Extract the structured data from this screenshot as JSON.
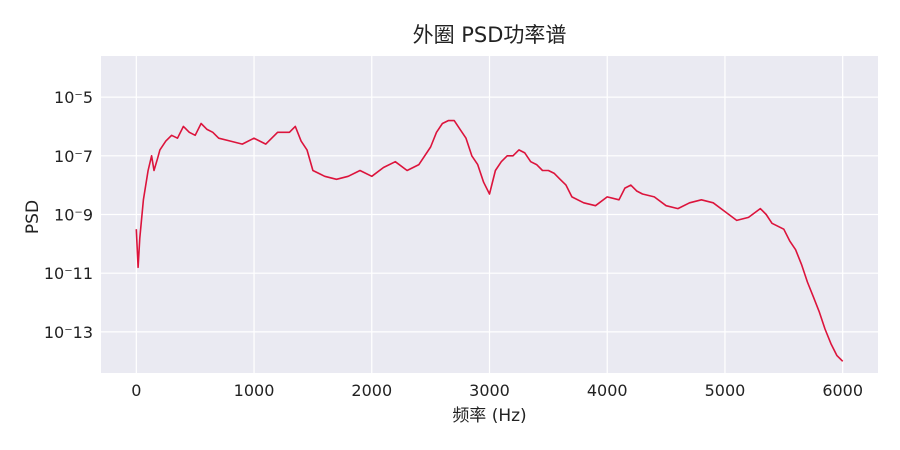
{
  "chart_data": {
    "type": "line",
    "title": "外圈 PSD功率谱",
    "xlabel": "频率 (Hz)",
    "ylabel": "PSD",
    "xlim": [
      -300,
      6300
    ],
    "x_ticks": [
      0,
      1000,
      2000,
      3000,
      4000,
      5000,
      6000
    ],
    "x_tick_labels": [
      "0",
      "1000",
      "2000",
      "3000",
      "4000",
      "5000",
      "6000"
    ],
    "yscale": "log",
    "y_ticks_exp": [
      -5,
      -7,
      -9,
      -11,
      -13
    ],
    "y_tick_labels": [
      "10⁻5",
      "10⁻7",
      "10⁻9",
      "10⁻11",
      "10⁻13"
    ],
    "ylim_exp": [
      -14.4,
      -3.6
    ],
    "grid": true,
    "legend": "none",
    "series": [
      {
        "color": "#DC143C",
        "x": [
          0,
          15,
          30,
          60,
          100,
          130,
          150,
          180,
          200,
          250,
          300,
          350,
          400,
          450,
          500,
          550,
          600,
          650,
          700,
          800,
          900,
          1000,
          1100,
          1200,
          1300,
          1350,
          1400,
          1450,
          1500,
          1550,
          1600,
          1700,
          1800,
          1900,
          2000,
          2100,
          2200,
          2300,
          2400,
          2500,
          2550,
          2600,
          2650,
          2700,
          2750,
          2800,
          2850,
          2900,
          2950,
          3000,
          3050,
          3100,
          3150,
          3200,
          3250,
          3300,
          3350,
          3400,
          3450,
          3500,
          3550,
          3600,
          3650,
          3700,
          3800,
          3900,
          4000,
          4100,
          4150,
          4200,
          4250,
          4300,
          4400,
          4500,
          4600,
          4700,
          4800,
          4900,
          5000,
          5100,
          5200,
          5300,
          5350,
          5400,
          5500,
          5550,
          5600,
          5650,
          5700,
          5750,
          5800,
          5850,
          5900,
          5950,
          6000
        ],
        "y_exp": [
          -9.5,
          -10.8,
          -9.8,
          -8.5,
          -7.5,
          -7.0,
          -7.5,
          -7.1,
          -6.8,
          -6.5,
          -6.3,
          -6.4,
          -6.0,
          -6.2,
          -6.3,
          -5.9,
          -6.1,
          -6.2,
          -6.4,
          -6.5,
          -6.6,
          -6.4,
          -6.6,
          -6.2,
          -6.2,
          -6.0,
          -6.5,
          -6.8,
          -7.5,
          -7.6,
          -7.7,
          -7.8,
          -7.7,
          -7.5,
          -7.7,
          -7.4,
          -7.2,
          -7.5,
          -7.3,
          -6.7,
          -6.2,
          -5.9,
          -5.8,
          -5.8,
          -6.1,
          -6.4,
          -7.0,
          -7.3,
          -7.9,
          -8.3,
          -7.5,
          -7.2,
          -7.0,
          -7.0,
          -6.8,
          -6.9,
          -7.2,
          -7.3,
          -7.5,
          -7.5,
          -7.6,
          -7.8,
          -8.0,
          -8.4,
          -8.6,
          -8.7,
          -8.4,
          -8.5,
          -8.1,
          -8.0,
          -8.2,
          -8.3,
          -8.4,
          -8.7,
          -8.8,
          -8.6,
          -8.5,
          -8.6,
          -8.9,
          -9.2,
          -9.1,
          -8.8,
          -9.0,
          -9.3,
          -9.5,
          -9.9,
          -10.2,
          -10.7,
          -11.3,
          -11.8,
          -12.3,
          -12.9,
          -13.4,
          -13.8,
          -14.0
        ]
      }
    ]
  }
}
